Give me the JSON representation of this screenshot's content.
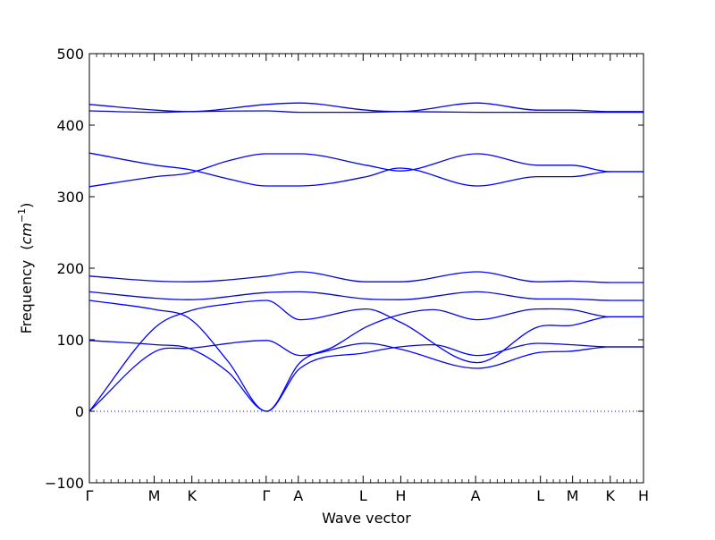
{
  "chart_data": {
    "type": "line",
    "title": "",
    "xlabel": "Wave vector",
    "ylabel": "Frequency",
    "ylabel_unit": "cm",
    "ylabel_unit_exp": "−1",
    "ylim": [
      -100,
      500
    ],
    "y_ticks": [
      "−100",
      "0",
      "100",
      "200",
      "300",
      "400",
      "500"
    ],
    "y_tick_values": [
      -100,
      0,
      100,
      200,
      300,
      400,
      500
    ],
    "x_path": [
      {
        "label": "Γ",
        "x": 0.0
      },
      {
        "label": "M",
        "x": 0.117
      },
      {
        "label": "K",
        "x": 0.185
      },
      {
        "label": "Γ",
        "x": 0.319
      },
      {
        "label": "A",
        "x": 0.377
      },
      {
        "label": "L",
        "x": 0.494
      },
      {
        "label": "H",
        "x": 0.562
      },
      {
        "label": "A",
        "x": 0.697
      },
      {
        "label": "L",
        "x": 0.814
      },
      {
        "label": "M",
        "x": 0.872
      },
      {
        "label": "K",
        "x": 0.94
      },
      {
        "label": "H",
        "x": 1.0
      }
    ],
    "xlim": [
      0,
      1
    ],
    "zero_line": true,
    "line_color": "#0000ff",
    "zero_line_color": "#0000ff",
    "series": [
      {
        "x": [
          0,
          0.12,
          0.18,
          0.25,
          0.32,
          0.38,
          0.5,
          0.56,
          0.7,
          0.81,
          0.87,
          0.94,
          1.0
        ],
        "y": [
          0,
          118,
          140,
          150,
          155,
          128,
          143,
          125,
          68,
          118,
          120,
          132,
          132
        ]
      },
      {
        "x": [
          0,
          0.12,
          0.18,
          0.32,
          0.38,
          0.5,
          0.56,
          0.7,
          0.81,
          0.87,
          0.94,
          1.0
        ],
        "y": [
          0,
          84,
          88,
          99,
          78,
          95,
          87,
          60,
          82,
          84,
          90,
          90
        ]
      },
      {
        "x": [
          0,
          0.12,
          0.18,
          0.25,
          0.32,
          0.38,
          0.5,
          0.56,
          0.62,
          0.7,
          0.81,
          0.87,
          0.94,
          1.0
        ],
        "y": [
          99,
          93,
          88,
          55,
          0,
          60,
          82,
          90,
          93,
          78,
          95,
          93,
          90,
          90
        ]
      },
      {
        "x": [
          0,
          0.12,
          0.18,
          0.25,
          0.32,
          0.38,
          0.44,
          0.5,
          0.56,
          0.62,
          0.7,
          0.81,
          0.87,
          0.94,
          1.0
        ],
        "y": [
          155,
          142,
          130,
          70,
          0,
          68,
          90,
          118,
          135,
          142,
          128,
          143,
          142,
          132,
          132
        ]
      },
      {
        "x": [
          0,
          0.12,
          0.18,
          0.32,
          0.38,
          0.5,
          0.56,
          0.7,
          0.81,
          0.87,
          0.94,
          1.0
        ],
        "y": [
          167,
          158,
          156,
          166,
          167,
          157,
          156,
          167,
          157,
          157,
          155,
          155
        ]
      },
      {
        "x": [
          0,
          0.12,
          0.18,
          0.32,
          0.38,
          0.5,
          0.56,
          0.7,
          0.81,
          0.87,
          0.94,
          1.0
        ],
        "y": [
          189,
          182,
          181,
          189,
          195,
          181,
          181,
          195,
          181,
          182,
          180,
          180
        ]
      },
      {
        "x": [
          0,
          0.12,
          0.18,
          0.25,
          0.32,
          0.38,
          0.5,
          0.56,
          0.7,
          0.81,
          0.87,
          0.94,
          1.0
        ],
        "y": [
          314,
          328,
          333,
          350,
          360,
          360,
          344,
          336,
          360,
          344,
          344,
          335,
          335
        ]
      },
      {
        "x": [
          0,
          0.12,
          0.18,
          0.25,
          0.32,
          0.38,
          0.5,
          0.56,
          0.7,
          0.81,
          0.87,
          0.94,
          1.0
        ],
        "y": [
          361,
          344,
          338,
          325,
          315,
          315,
          328,
          340,
          315,
          328,
          328,
          335,
          335
        ]
      },
      {
        "x": [
          0,
          0.12,
          0.18,
          0.32,
          0.38,
          0.5,
          0.56,
          0.7,
          0.81,
          0.87,
          0.94,
          1.0
        ],
        "y": [
          420,
          418,
          419,
          420,
          418,
          418,
          419,
          418,
          418,
          418,
          418,
          418
        ]
      },
      {
        "x": [
          0,
          0.12,
          0.18,
          0.32,
          0.38,
          0.5,
          0.56,
          0.7,
          0.81,
          0.87,
          0.94,
          1.0
        ],
        "y": [
          429,
          421,
          419,
          429,
          431,
          421,
          419,
          431,
          421,
          421,
          419,
          419
        ]
      }
    ]
  }
}
